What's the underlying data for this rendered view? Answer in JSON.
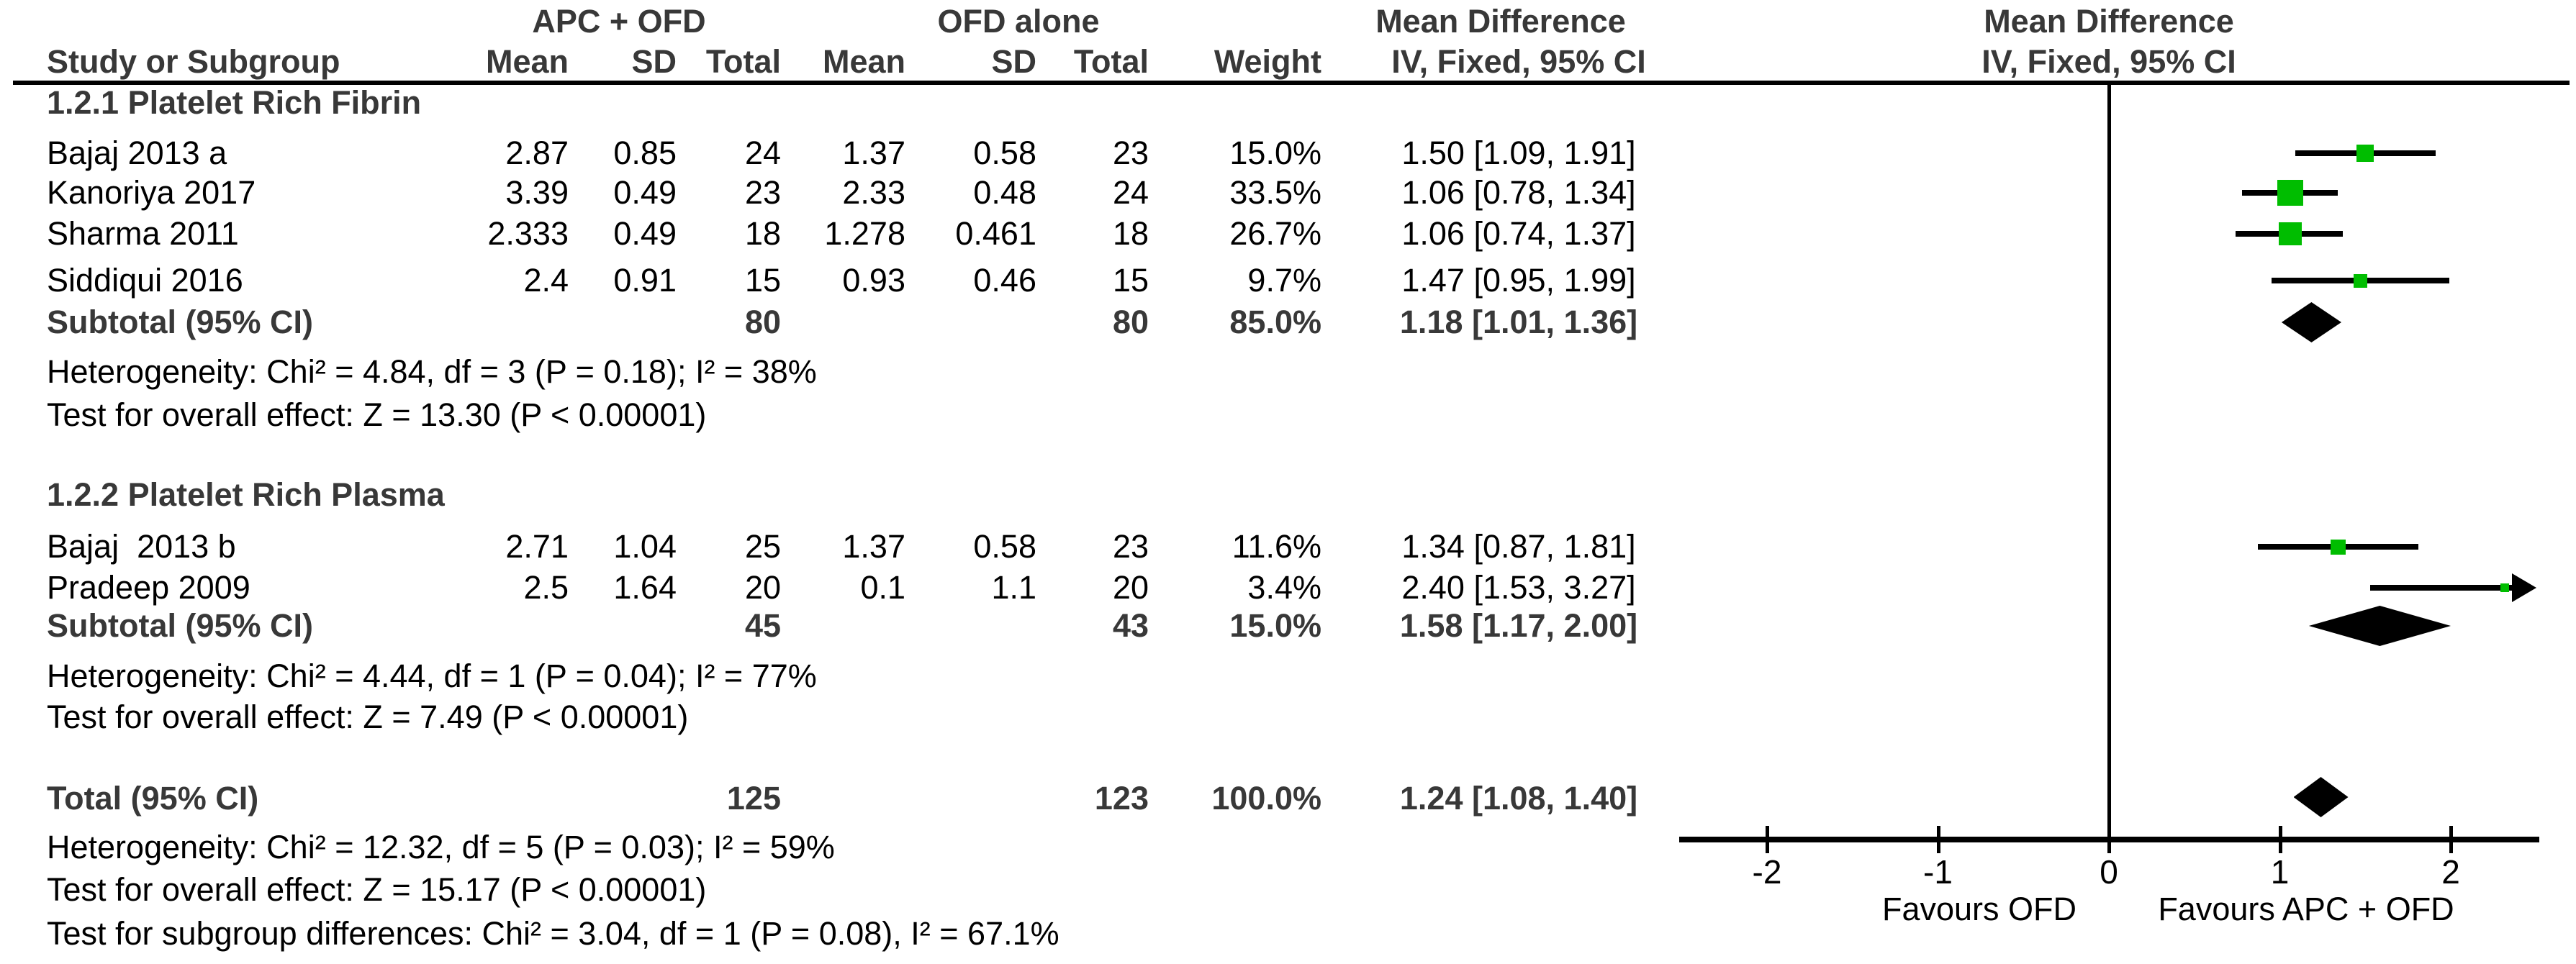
{
  "header": {
    "group1_label": "APC + OFD",
    "group2_label": "OFD alone",
    "md_col_label": "Mean Difference",
    "plot_col_label": "Mean Difference",
    "col_study": "Study or Subgroup",
    "col_mean": "Mean",
    "col_sd": "SD",
    "col_total": "Total",
    "col_weight": "Weight",
    "col_ci": "IV, Fixed, 95% CI",
    "col_ci_plot": "IV, Fixed, 95% CI"
  },
  "groups": [
    {
      "label": "1.2.1 Platelet Rich Fibrin",
      "studies": [
        {
          "name": "Bajaj 2013 a",
          "mean1": "2.87",
          "sd1": "0.85",
          "total1": "24",
          "mean2": "1.37",
          "sd2": "0.58",
          "total2": "23",
          "weight": "15.0%",
          "ci_text": "1.50 [1.09, 1.91]",
          "md": 1.5,
          "lo": 1.09,
          "hi": 1.91,
          "weight_pct": 15.0
        },
        {
          "name": "Kanoriya 2017",
          "mean1": "3.39",
          "sd1": "0.49",
          "total1": "23",
          "mean2": "2.33",
          "sd2": "0.48",
          "total2": "24",
          "weight": "33.5%",
          "ci_text": "1.06 [0.78, 1.34]",
          "md": 1.06,
          "lo": 0.78,
          "hi": 1.34,
          "weight_pct": 33.5
        },
        {
          "name": "Sharma 2011",
          "mean1": "2.333",
          "sd1": "0.49",
          "total1": "18",
          "mean2": "1.278",
          "sd2": "0.461",
          "total2": "18",
          "weight": "26.7%",
          "ci_text": "1.06 [0.74, 1.37]",
          "md": 1.06,
          "lo": 0.74,
          "hi": 1.37,
          "weight_pct": 26.7
        },
        {
          "name": "Siddiqui 2016",
          "mean1": "2.4",
          "sd1": "0.91",
          "total1": "15",
          "mean2": "0.93",
          "sd2": "0.46",
          "total2": "15",
          "weight": "9.7%",
          "ci_text": "1.47 [0.95, 1.99]",
          "md": 1.47,
          "lo": 0.95,
          "hi": 1.99,
          "weight_pct": 9.7
        }
      ],
      "subtotal": {
        "label": "Subtotal (95% CI)",
        "total1": "80",
        "total2": "80",
        "weight": "85.0%",
        "ci_text": "1.18 [1.01, 1.36]",
        "md": 1.18,
        "lo": 1.01,
        "hi": 1.36
      },
      "heterogeneity": "Heterogeneity: Chi² = 4.84, df = 3 (P = 0.18); I² = 38%",
      "overall_effect": "Test for overall effect: Z = 13.30 (P < 0.00001)"
    },
    {
      "label": "1.2.2 Platelet Rich Plasma",
      "studies": [
        {
          "name": "Bajaj  2013 b",
          "mean1": "2.71",
          "sd1": "1.04",
          "total1": "25",
          "mean2": "1.37",
          "sd2": "0.58",
          "total2": "23",
          "weight": "11.6%",
          "ci_text": "1.34 [0.87, 1.81]",
          "md": 1.34,
          "lo": 0.87,
          "hi": 1.81,
          "weight_pct": 11.6
        },
        {
          "name": "Pradeep 2009",
          "mean1": "2.5",
          "sd1": "1.64",
          "total1": "20",
          "mean2": "0.1",
          "sd2": "1.1",
          "total2": "20",
          "weight": "3.4%",
          "ci_text": "2.40 [1.53, 3.27]",
          "md": 2.4,
          "lo": 1.53,
          "hi": 3.27,
          "weight_pct": 3.4
        }
      ],
      "subtotal": {
        "label": "Subtotal (95% CI)",
        "total1": "45",
        "total2": "43",
        "weight": "15.0%",
        "ci_text": "1.58 [1.17, 2.00]",
        "md": 1.58,
        "lo": 1.17,
        "hi": 2.0
      },
      "heterogeneity": "Heterogeneity: Chi² = 4.44, df = 1 (P = 0.04); I² = 77%",
      "overall_effect": "Test for overall effect: Z = 7.49 (P < 0.00001)"
    }
  ],
  "total": {
    "label": "Total (95% CI)",
    "total1": "125",
    "total2": "123",
    "weight": "100.0%",
    "ci_text": "1.24 [1.08, 1.40]",
    "md": 1.24,
    "lo": 1.08,
    "hi": 1.4
  },
  "footer_lines": [
    "Heterogeneity: Chi² = 12.32, df = 5 (P = 0.03); I² = 59%",
    "Test for overall effect: Z = 15.17 (P < 0.00001)",
    "Test for subgroup differences: Chi² = 3.04, df = 1 (P = 0.08), I² = 67.1%"
  ],
  "axis": {
    "ticks": [
      -2,
      -1,
      0,
      1,
      2
    ],
    "min": -2.5,
    "max": 2.5,
    "favours_left": "Favours OFD",
    "favours_right": "Favours APC + OFD"
  },
  "colors": {
    "marker_green": "#00bd00",
    "bold_text": "#383838",
    "line_black": "#000000"
  },
  "chart_data": {
    "type": "forest",
    "title": "Mean Difference, IV, Fixed, 95% CI — APC + OFD vs OFD alone",
    "effect_measure": "Mean Difference (IV, Fixed, 95% CI)",
    "xlim": [
      -2.5,
      2.5
    ],
    "x_ticks": [
      -2,
      -1,
      0,
      1,
      2
    ],
    "favours": {
      "left": "Favours OFD",
      "right": "Favours APC + OFD"
    },
    "subgroups": [
      {
        "name": "1.2.1 Platelet Rich Fibrin",
        "studies": [
          {
            "study": "Bajaj 2013 a",
            "md": 1.5,
            "ci": [
              1.09,
              1.91
            ],
            "weight_pct": 15.0,
            "apc_mean": 2.87,
            "apc_sd": 0.85,
            "apc_n": 24,
            "ofd_mean": 1.37,
            "ofd_sd": 0.58,
            "ofd_n": 23
          },
          {
            "study": "Kanoriya 2017",
            "md": 1.06,
            "ci": [
              0.78,
              1.34
            ],
            "weight_pct": 33.5,
            "apc_mean": 3.39,
            "apc_sd": 0.49,
            "apc_n": 23,
            "ofd_mean": 2.33,
            "ofd_sd": 0.48,
            "ofd_n": 24
          },
          {
            "study": "Sharma 2011",
            "md": 1.06,
            "ci": [
              0.74,
              1.37
            ],
            "weight_pct": 26.7,
            "apc_mean": 2.333,
            "apc_sd": 0.49,
            "apc_n": 18,
            "ofd_mean": 1.278,
            "ofd_sd": 0.461,
            "ofd_n": 18
          },
          {
            "study": "Siddiqui 2016",
            "md": 1.47,
            "ci": [
              0.95,
              1.99
            ],
            "weight_pct": 9.7,
            "apc_mean": 2.4,
            "apc_sd": 0.91,
            "apc_n": 15,
            "ofd_mean": 0.93,
            "ofd_sd": 0.46,
            "ofd_n": 15
          }
        ],
        "subtotal": {
          "md": 1.18,
          "ci": [
            1.01,
            1.36
          ],
          "weight_pct": 85.0,
          "apc_n": 80,
          "ofd_n": 80
        },
        "heterogeneity": "Chi² = 4.84, df = 3 (P = 0.18); I² = 38%",
        "overall_effect": "Z = 13.30 (P < 0.00001)"
      },
      {
        "name": "1.2.2 Platelet Rich Plasma",
        "studies": [
          {
            "study": "Bajaj 2013 b",
            "md": 1.34,
            "ci": [
              0.87,
              1.81
            ],
            "weight_pct": 11.6,
            "apc_mean": 2.71,
            "apc_sd": 1.04,
            "apc_n": 25,
            "ofd_mean": 1.37,
            "ofd_sd": 0.58,
            "ofd_n": 23
          },
          {
            "study": "Pradeep 2009",
            "md": 2.4,
            "ci": [
              1.53,
              3.27
            ],
            "weight_pct": 3.4,
            "apc_mean": 2.5,
            "apc_sd": 1.64,
            "apc_n": 20,
            "ofd_mean": 0.1,
            "ofd_sd": 1.1,
            "ofd_n": 20,
            "ci_exceeds_axis": true
          }
        ],
        "subtotal": {
          "md": 1.58,
          "ci": [
            1.17,
            2.0
          ],
          "weight_pct": 15.0,
          "apc_n": 45,
          "ofd_n": 43
        },
        "heterogeneity": "Chi² = 4.44, df = 1 (P = 0.04); I² = 77%",
        "overall_effect": "Z = 7.49 (P < 0.00001)"
      }
    ],
    "total": {
      "md": 1.24,
      "ci": [
        1.08,
        1.4
      ],
      "weight_pct": 100.0,
      "apc_n": 125,
      "ofd_n": 123
    },
    "total_heterogeneity": "Chi² = 12.32, df = 5 (P = 0.03); I² = 59%",
    "total_overall_effect": "Z = 15.17 (P < 0.00001)",
    "subgroup_differences": "Chi² = 3.04, df = 1 (P = 0.08), I² = 67.1%"
  }
}
